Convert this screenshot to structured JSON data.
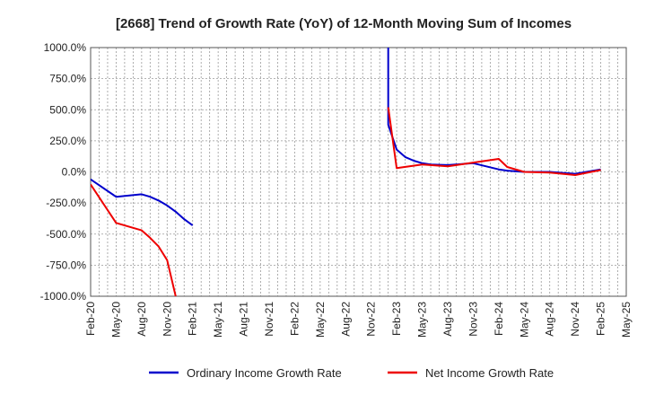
{
  "chart_data": {
    "type": "line",
    "title": "[2668]  Trend of Growth Rate (YoY) of 12-Month Moving Sum of Incomes",
    "xlabel": "",
    "ylabel": "",
    "ylim": [
      -1000,
      1000
    ],
    "y_ticks": [
      1000,
      750,
      500,
      250,
      0,
      -250,
      -500,
      -750,
      -1000
    ],
    "y_tick_labels": [
      "1000.0%",
      "750.0%",
      "500.0%",
      "250.0%",
      "0.0%",
      "-250.0%",
      "-500.0%",
      "-750.0%",
      "-1000.0%"
    ],
    "x_start": "Feb-20",
    "x_end": "May-25",
    "x_tick_labels": [
      "Feb-20",
      "May-20",
      "Aug-20",
      "Nov-20",
      "Feb-21",
      "May-21",
      "Aug-21",
      "Nov-21",
      "Feb-22",
      "May-22",
      "Aug-22",
      "Nov-22",
      "Feb-23",
      "May-23",
      "Aug-23",
      "Nov-23",
      "Feb-24",
      "May-24",
      "Aug-24",
      "Nov-24",
      "Feb-25",
      "May-25"
    ],
    "grid": true,
    "legend_position": "bottom",
    "series": [
      {
        "name": "Ordinary Income Growth Rate",
        "color": "#0000cc",
        "points": [
          [
            "Feb-20",
            -60
          ],
          [
            "May-20",
            -200
          ],
          [
            "Aug-20",
            -180
          ],
          [
            "Sep-20",
            -200
          ],
          [
            "Oct-20",
            -230
          ],
          [
            "Nov-20",
            -270
          ],
          [
            "Dec-20",
            -320
          ],
          [
            "Jan-21",
            -380
          ],
          [
            "Feb-21",
            -430
          ]
        ]
      },
      {
        "name": "Ordinary Income Growth Rate",
        "color": "#0000cc",
        "points": [
          [
            "Jan-23",
            1000
          ],
          [
            "Jan-23",
            600
          ],
          [
            "Jan-23",
            380
          ],
          [
            "Feb-23",
            180
          ],
          [
            "Mar-23",
            120
          ],
          [
            "Apr-23",
            90
          ],
          [
            "May-23",
            70
          ],
          [
            "Jun-23",
            60
          ],
          [
            "Aug-23",
            55
          ],
          [
            "Nov-23",
            70
          ],
          [
            "Feb-24",
            20
          ],
          [
            "Mar-24",
            10
          ],
          [
            "May-24",
            0
          ],
          [
            "Aug-24",
            0
          ],
          [
            "Nov-24",
            -15
          ],
          [
            "Feb-25",
            20
          ]
        ]
      },
      {
        "name": "Net Income Growth Rate",
        "color": "#ee0000",
        "points": [
          [
            "Feb-20",
            -100
          ],
          [
            "May-20",
            -410
          ],
          [
            "Aug-20",
            -470
          ],
          [
            "Sep-20",
            -530
          ],
          [
            "Oct-20",
            -600
          ],
          [
            "Nov-20",
            -710
          ],
          [
            "Dec-20",
            -1000
          ]
        ]
      },
      {
        "name": "Net Income Growth Rate",
        "color": "#ee0000",
        "points": [
          [
            "Jan-23",
            520
          ],
          [
            "Feb-23",
            30
          ],
          [
            "May-23",
            60
          ],
          [
            "Aug-23",
            45
          ],
          [
            "Nov-23",
            75
          ],
          [
            "Feb-24",
            105
          ],
          [
            "Mar-24",
            40
          ],
          [
            "May-24",
            0
          ],
          [
            "Aug-24",
            -5
          ],
          [
            "Nov-24",
            -25
          ],
          [
            "Feb-25",
            15
          ]
        ]
      }
    ],
    "legend": [
      {
        "label": "Ordinary Income Growth Rate",
        "color": "#0000cc"
      },
      {
        "label": "Net Income Growth Rate",
        "color": "#ee0000"
      }
    ]
  }
}
